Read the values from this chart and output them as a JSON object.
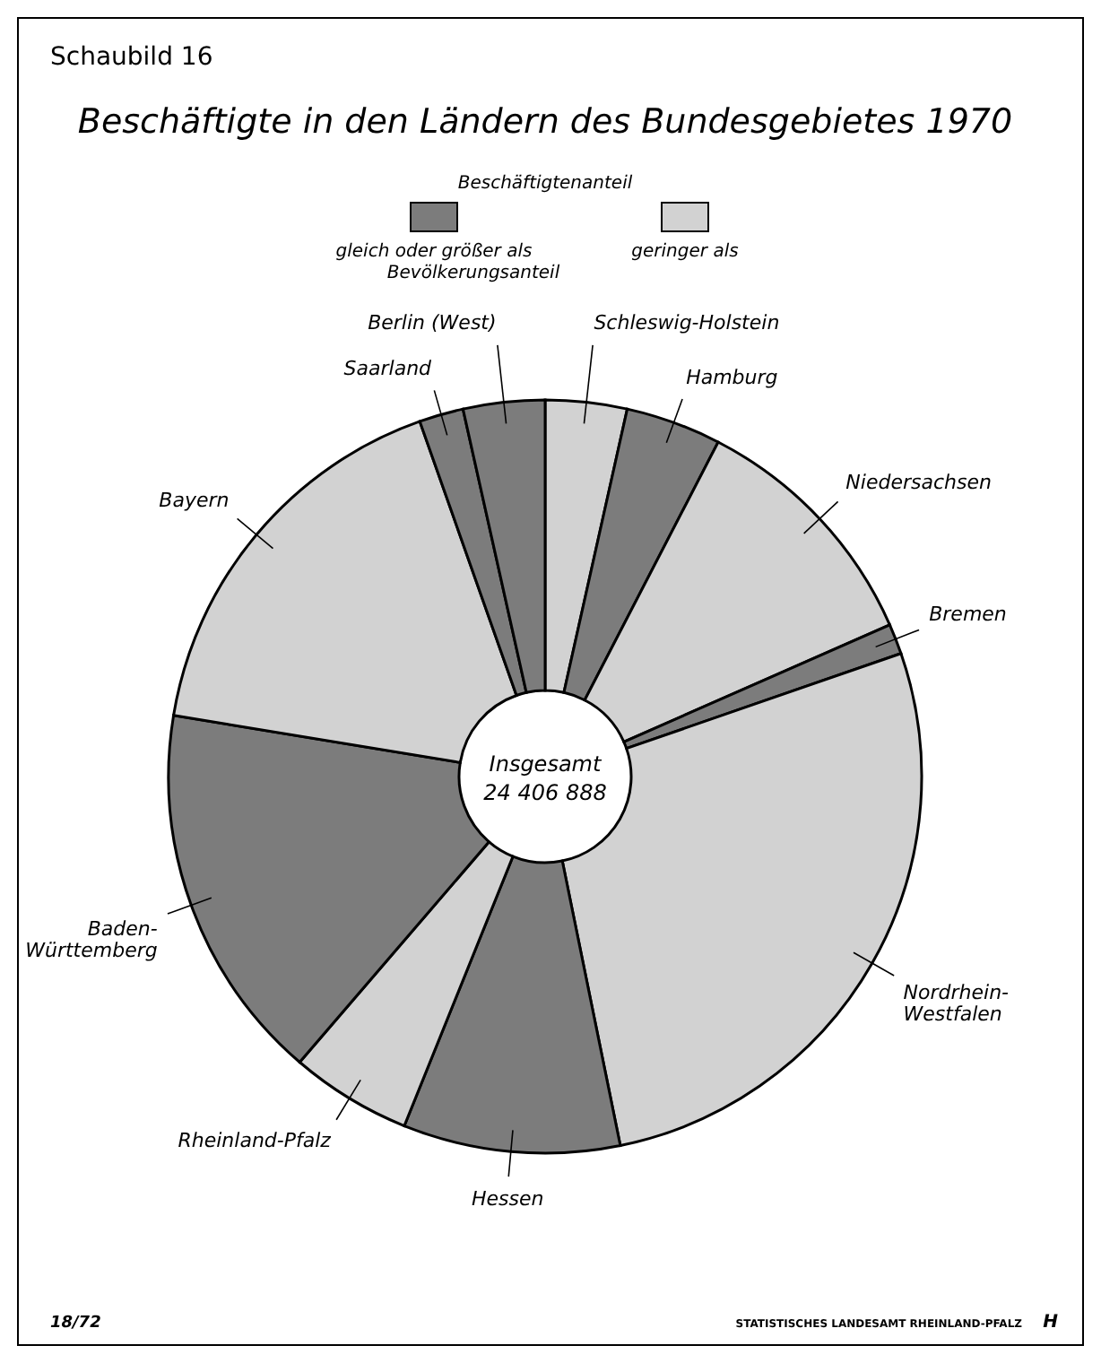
{
  "chart_data": {
    "type": "donut",
    "title": "Beschäftigte in den Ländern des Bundesgebietes 1970",
    "legend_title": "Beschäftigtenanteil",
    "categories": [
      "Schleswig-Holstein",
      "Hamburg",
      "Niedersachsen",
      "Bremen",
      "Nordrhein-Westfalen",
      "Hessen",
      "Rheinland-Pfalz",
      "Baden-Württemberg",
      "Bayern",
      "Saarland",
      "Berlin (West)"
    ],
    "values": [
      3.5,
      4.1,
      10.8,
      1.3,
      27.1,
      9.3,
      5.2,
      16.3,
      17.0,
      1.9,
      3.5
    ],
    "colors": [
      "#d2d2d2",
      "#7c7c7c",
      "#d2d2d2",
      "#7c7c7c",
      "#d2d2d2",
      "#7c7c7c",
      "#d2d2d2",
      "#7c7c7c",
      "#d2d2d2",
      "#7c7c7c",
      "#7c7c7c"
    ],
    "annotations": [
      "Schaubild 16",
      "Insgesamt",
      "24 406 888",
      "gleich oder größer als",
      "Bevölkerungsanteil",
      "geringer als",
      "18/72",
      "STATISTISCHES LANDESAMT RHEINLAND-PFALZ",
      "H"
    ]
  }
}
